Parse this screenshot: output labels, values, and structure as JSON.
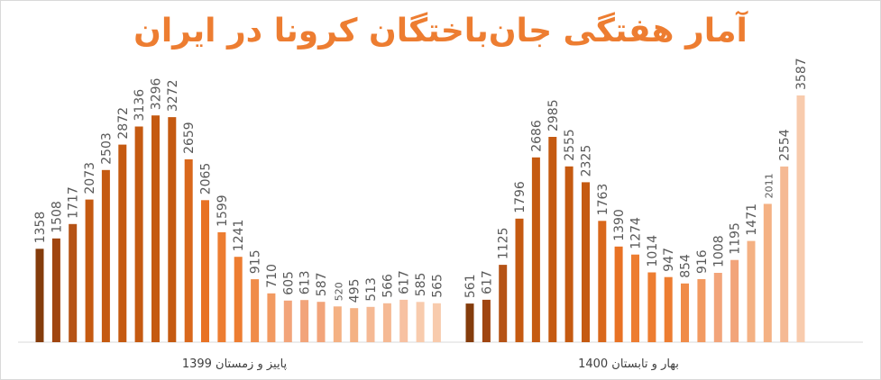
{
  "chart_data": {
    "type": "bar",
    "title": "آمار هفتگی جان‌باختگان کرونا در ایران",
    "xlabel": "",
    "ylabel": "",
    "ylim": [
      0,
      3600
    ],
    "grid": false,
    "legend": "none",
    "groups": [
      {
        "label": "پاییز و زمستان 1399",
        "values": [
          1358,
          1508,
          1717,
          2073,
          2503,
          2872,
          3136,
          3296,
          3272,
          2659,
          2065,
          1599,
          1241,
          915,
          710,
          605,
          613,
          587,
          520,
          495,
          513,
          566,
          617,
          585,
          565
        ],
        "colors": [
          "#843c0c",
          "#a04510",
          "#b55316",
          "#c55a11",
          "#c55a11",
          "#c55a11",
          "#c55a11",
          "#c55a11",
          "#c55a11",
          "#d9681c",
          "#e87224",
          "#ed7d31",
          "#ed7d31",
          "#f08c49",
          "#f29a61",
          "#f2a47a",
          "#f2a47a",
          "#f2a47a",
          "#f4b183",
          "#f4b183",
          "#f5b994",
          "#f5b994",
          "#f7c1a2",
          "#f8cbad",
          "#f8cbad"
        ]
      },
      {
        "label": "بهار و تابستان 1400",
        "values": [
          561,
          617,
          1125,
          1796,
          2686,
          2985,
          2555,
          2325,
          1763,
          1390,
          1274,
          1014,
          947,
          854,
          916,
          1008,
          1195,
          1471,
          2011,
          2554,
          3587
        ],
        "colors": [
          "#843c0c",
          "#a04510",
          "#b55316",
          "#c55a11",
          "#c55a11",
          "#c55a11",
          "#c55a11",
          "#c55a11",
          "#d9681c",
          "#e87224",
          "#ed7d31",
          "#ed7d31",
          "#ed7d31",
          "#f08c49",
          "#f29a61",
          "#f2a47a",
          "#f2a47a",
          "#f4b183",
          "#f4b183",
          "#f5b994",
          "#f8cbad"
        ]
      }
    ]
  },
  "colors": {
    "title": "#ed7d31",
    "axis": "#d9d9d9",
    "label": "#595959"
  }
}
